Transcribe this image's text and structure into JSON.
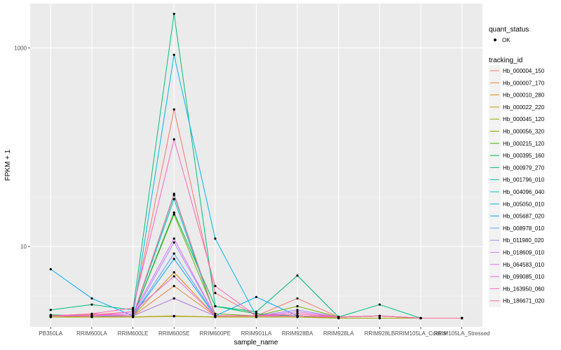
{
  "chart_data": {
    "type": "line",
    "xlabel": "sample_name",
    "ylabel": "FPKM + 1",
    "y_scale": "log10",
    "ylim": [
      1.55,
      2800
    ],
    "y_ticks": [
      10,
      1000
    ],
    "y_tick_labels": [
      "10",
      "1000"
    ],
    "grid": true,
    "legend_placement": "right",
    "categories": [
      "PB350LA",
      "RRIM600LA",
      "RRIM600LE",
      "RRIM600SE",
      "RRIM600PE",
      "RRIM901LA",
      "RRIM928BA",
      "RRIM928LA",
      "RRIM928LB",
      "RRIM105LA_Control",
      "RRIM105LA_Stressed"
    ],
    "shape_legend": {
      "title": "quant_status",
      "entries": [
        "OK"
      ]
    },
    "color_legend_title": "tracking_id",
    "series": [
      {
        "name": "Hb_000004_150",
        "color": "#f8766d",
        "values": [
          2.0,
          2.05,
          2.2,
          240,
          3.4,
          2.0,
          3.0,
          1.95,
          2.0,
          1.9,
          1.9
        ]
      },
      {
        "name": "Hb_000007_170",
        "color": "#ea8331",
        "values": [
          2.0,
          2.0,
          2.0,
          4.0,
          2.0,
          2.0,
          2.0,
          1.95,
          2.0,
          1.9,
          1.9
        ]
      },
      {
        "name": "Hb_000010_280",
        "color": "#d89000",
        "values": [
          2.0,
          1.95,
          2.0,
          5.5,
          2.0,
          2.0,
          2.0,
          1.9,
          1.9,
          1.9,
          1.9
        ]
      },
      {
        "name": "Hb_000022_220",
        "color": "#c09b00",
        "values": [
          1.95,
          1.95,
          1.95,
          2.0,
          1.95,
          1.95,
          1.95,
          1.9,
          1.9,
          1.9,
          1.9
        ]
      },
      {
        "name": "Hb_000045_120",
        "color": "#a3a500",
        "values": [
          1.95,
          1.95,
          1.95,
          1.98,
          1.95,
          1.95,
          1.95,
          1.9,
          1.9,
          1.9,
          1.9
        ]
      },
      {
        "name": "Hb_000056_320",
        "color": "#7cae00",
        "values": [
          2.0,
          2.0,
          2.0,
          21,
          2.1,
          2.0,
          2.5,
          1.95,
          2.0,
          1.9,
          1.9
        ]
      },
      {
        "name": "Hb_000215_120",
        "color": "#39b600",
        "values": [
          2.0,
          2.0,
          2.0,
          3.0,
          2.0,
          2.0,
          2.0,
          1.95,
          2.0,
          1.9,
          1.9
        ]
      },
      {
        "name": "Hb_000395_160",
        "color": "#00bb4e",
        "values": [
          2.05,
          2.0,
          2.0,
          22,
          2.5,
          2.1,
          2.0,
          1.95,
          2.0,
          1.9,
          1.9
        ]
      },
      {
        "name": "Hb_000979_270",
        "color": "#00bf7d",
        "values": [
          2.3,
          2.6,
          2.3,
          2200,
          2.5,
          2.2,
          5.1,
          1.95,
          2.6,
          1.9,
          1.9
        ]
      },
      {
        "name": "Hb_001796_010",
        "color": "#00c1a3",
        "values": [
          2.0,
          2.0,
          2.0,
          33,
          2.0,
          2.0,
          2.0,
          1.95,
          2.0,
          1.9,
          1.9
        ]
      },
      {
        "name": "Hb_004096_040",
        "color": "#00bfc4",
        "values": [
          2.0,
          2.0,
          2.0,
          30,
          2.0,
          2.0,
          2.0,
          1.95,
          2.0,
          1.9,
          1.9
        ]
      },
      {
        "name": "Hb_005050_010",
        "color": "#00b8e7",
        "values": [
          2.0,
          2.0,
          2.0,
          850,
          12,
          2.0,
          2.0,
          1.95,
          2.0,
          1.9,
          1.9
        ]
      },
      {
        "name": "Hb_005687_020",
        "color": "#00a9ff",
        "values": [
          5.9,
          3.0,
          2.0,
          7.5,
          2.0,
          3.1,
          2.0,
          1.95,
          2.0,
          1.9,
          1.9
        ]
      },
      {
        "name": "Hb_008978_010",
        "color": "#619cff",
        "values": [
          2.0,
          2.0,
          2.0,
          8.5,
          2.0,
          2.0,
          2.0,
          1.95,
          2.0,
          1.9,
          1.9
        ]
      },
      {
        "name": "Hb_011980_020",
        "color": "#9e8cff",
        "values": [
          2.0,
          2.0,
          2.0,
          11,
          2.0,
          2.0,
          2.3,
          1.95,
          2.0,
          1.9,
          1.9
        ]
      },
      {
        "name": "Hb_018609_010",
        "color": "#c77cff",
        "values": [
          2.0,
          2.0,
          2.0,
          3.0,
          2.0,
          2.0,
          2.0,
          1.95,
          2.0,
          1.9,
          1.9
        ]
      },
      {
        "name": "Hb_064583_010",
        "color": "#e76bf3",
        "values": [
          2.0,
          2.0,
          2.1,
          12,
          2.0,
          2.0,
          2.2,
          1.95,
          2.0,
          1.9,
          1.9
        ]
      },
      {
        "name": "Hb_099085_010",
        "color": "#fa62db",
        "values": [
          2.0,
          2.0,
          2.2,
          5.0,
          2.0,
          2.0,
          2.1,
          1.95,
          2.0,
          1.9,
          1.9
        ]
      },
      {
        "name": "Hb_163950_060",
        "color": "#ff62bc",
        "values": [
          2.0,
          2.1,
          2.4,
          120,
          4.0,
          2.0,
          2.0,
          1.95,
          2.0,
          1.9,
          1.9
        ]
      },
      {
        "name": "Hb_186671_020",
        "color": "#ff6c91",
        "values": [
          2.0,
          2.1,
          2.0,
          34,
          2.0,
          2.0,
          2.1,
          1.95,
          2.0,
          1.9,
          1.9
        ]
      }
    ]
  }
}
